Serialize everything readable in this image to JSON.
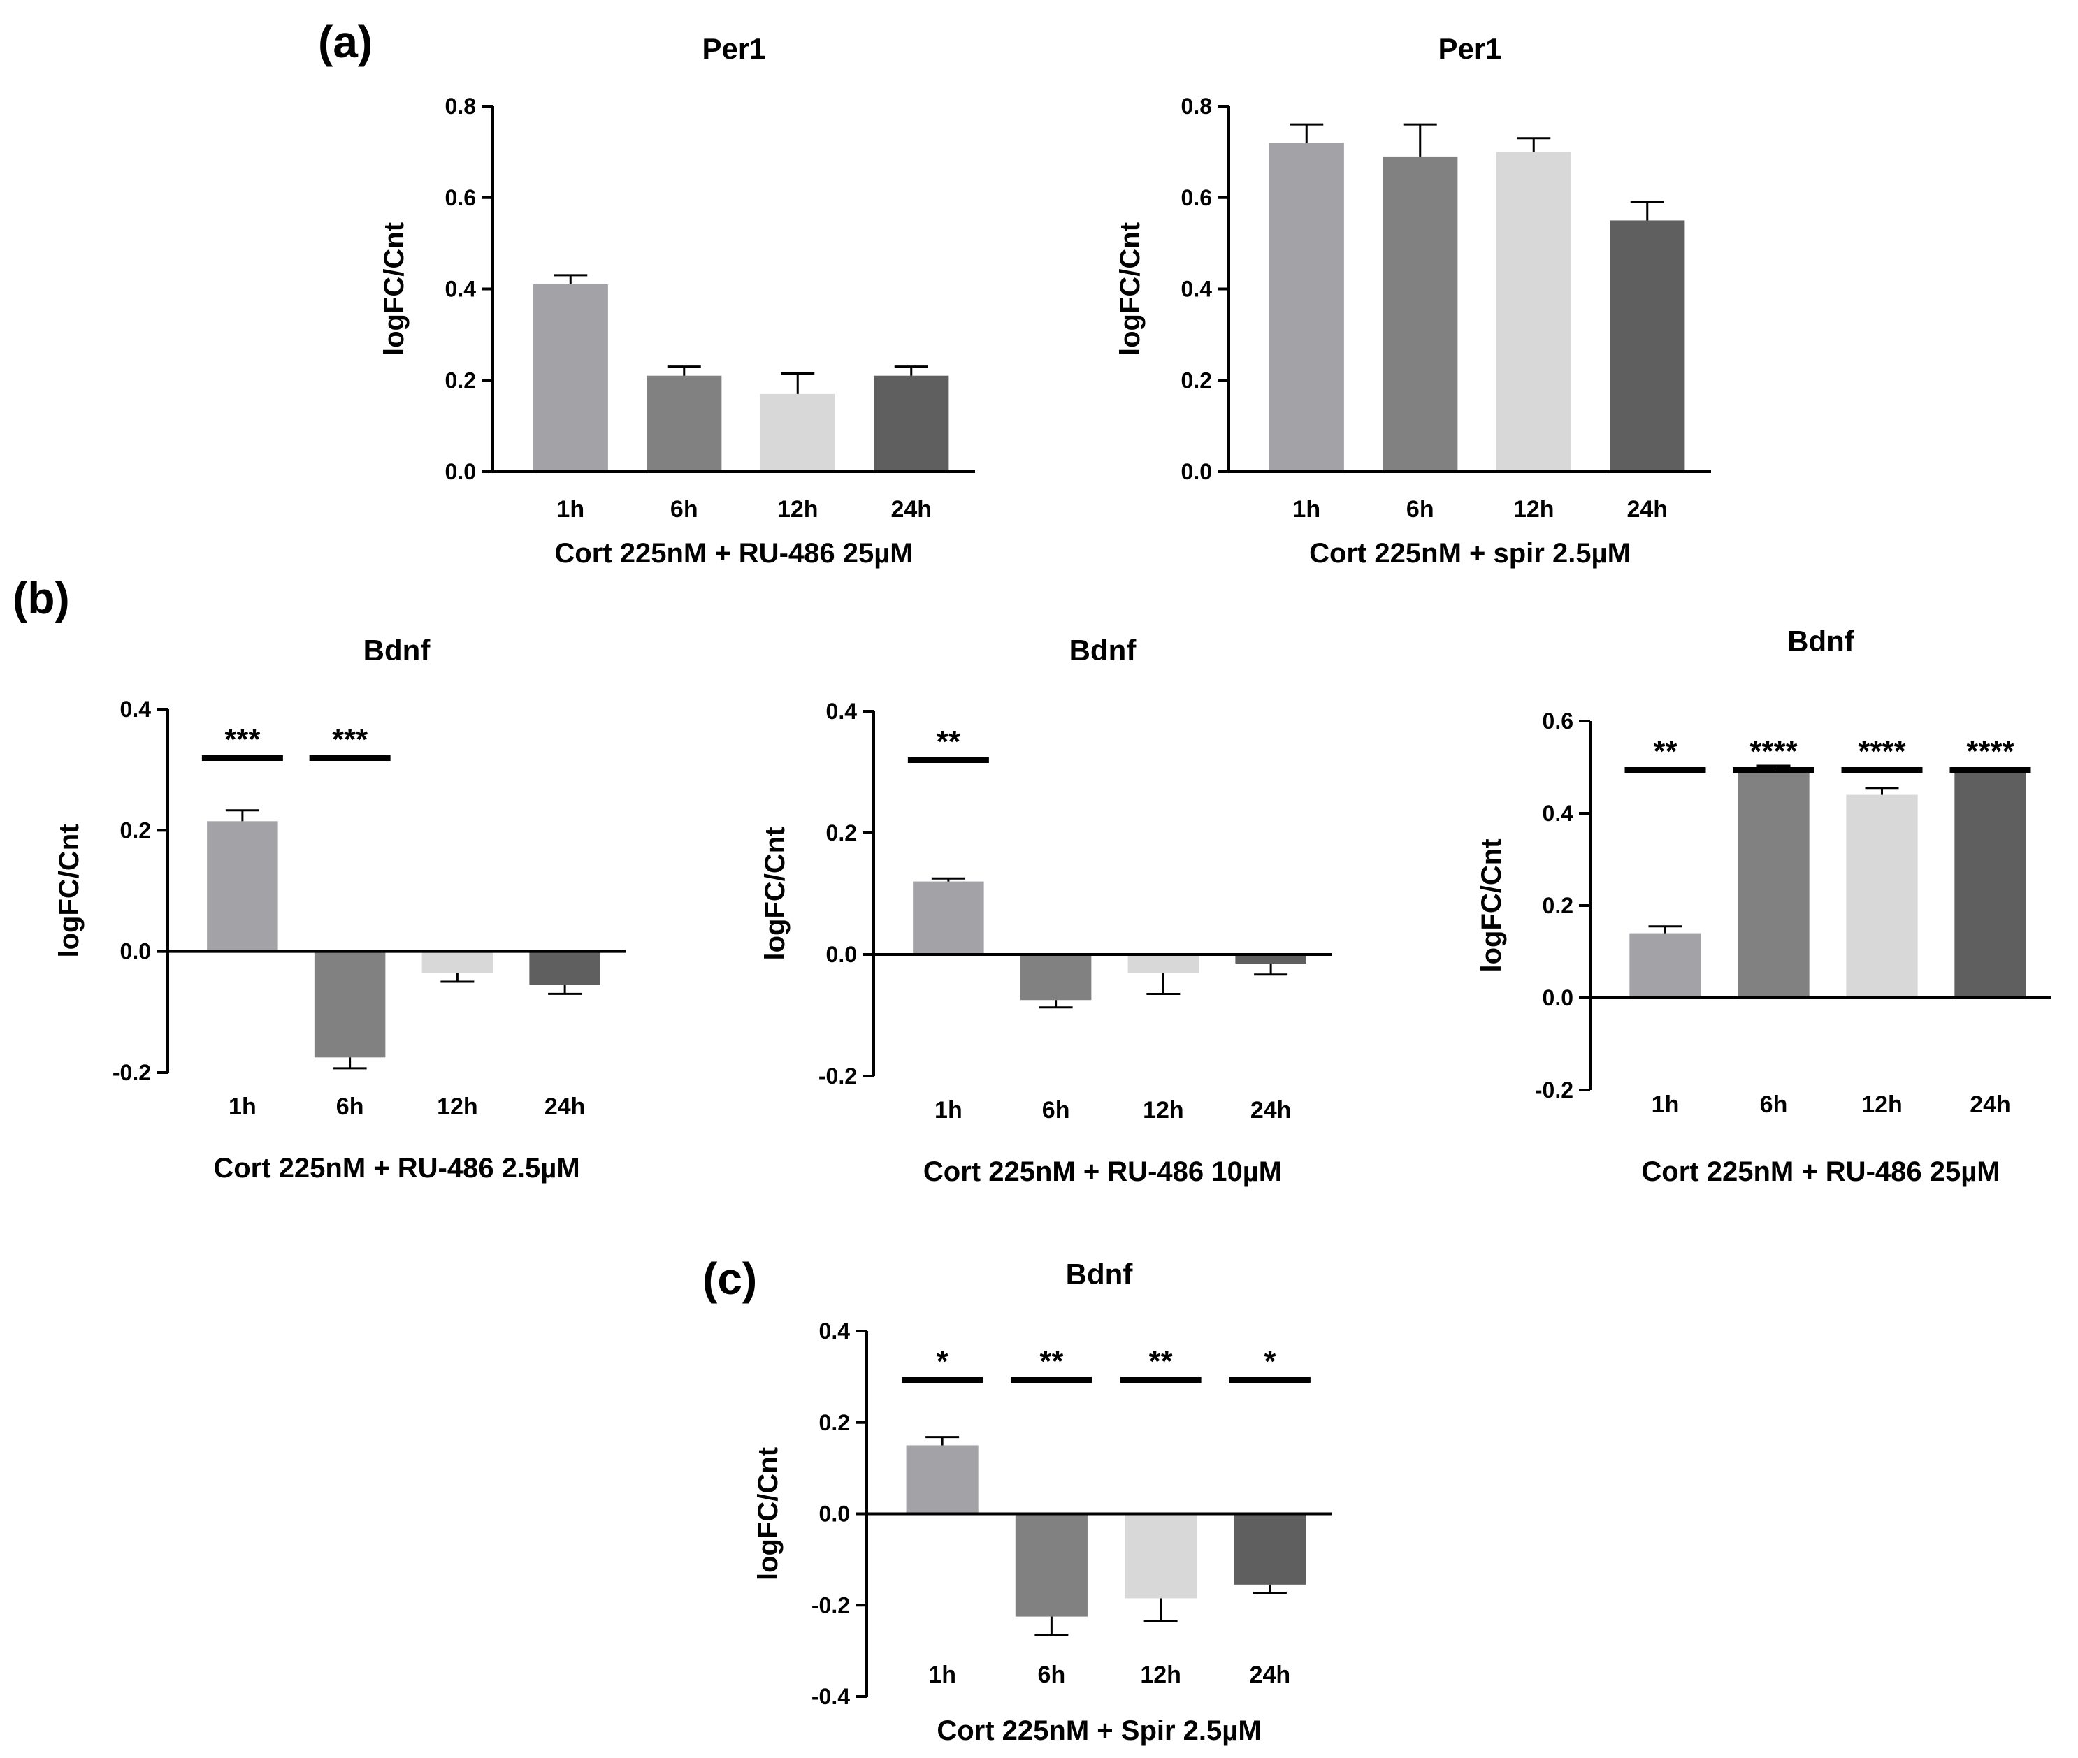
{
  "panel_labels": [
    "(a)",
    "(b)",
    "(c)"
  ],
  "bar_colors": [
    "#a3a2a7",
    "#818181",
    "#d8d8d8",
    "#5f5f5f"
  ],
  "chart_data": [
    {
      "id": "a1",
      "type": "bar",
      "panel": "(a)",
      "title": "Per1",
      "ylabel": "logFC/Cnt",
      "xlabel": "Cort 225nM + RU-486 25µM",
      "categories": [
        "1h",
        "6h",
        "12h",
        "24h"
      ],
      "values": [
        0.41,
        0.21,
        0.17,
        0.21
      ],
      "errors": [
        0.02,
        0.02,
        0.045,
        0.02
      ],
      "ylim": [
        0,
        0.8
      ],
      "yticks": [
        "0.0",
        "0.2",
        "0.4",
        "0.6",
        "0.8"
      ],
      "significance": [
        "",
        "",
        "",
        ""
      ]
    },
    {
      "id": "a2",
      "type": "bar",
      "panel": "(a)",
      "title": "Per1",
      "ylabel": "logFC/Cnt",
      "xlabel": "Cort 225nM + spir 2.5µM",
      "categories": [
        "1h",
        "6h",
        "12h",
        "24h"
      ],
      "values": [
        0.72,
        0.69,
        0.7,
        0.55
      ],
      "errors": [
        0.04,
        0.07,
        0.03,
        0.04
      ],
      "ylim": [
        0,
        0.8
      ],
      "yticks": [
        "0.0",
        "0.2",
        "0.4",
        "0.6",
        "0.8"
      ],
      "significance": [
        "",
        "",
        "",
        ""
      ]
    },
    {
      "id": "b1",
      "type": "bar",
      "panel": "(b)",
      "title": "Bdnf",
      "ylabel": "logFC/Cnt",
      "xlabel": "Cort 225nM + RU-486 2.5µM",
      "categories": [
        "1h",
        "6h",
        "12h",
        "24h"
      ],
      "values": [
        0.215,
        -0.175,
        -0.035,
        -0.055
      ],
      "errors": [
        0.018,
        0.018,
        0.015,
        0.015
      ],
      "ylim": [
        -0.2,
        0.4
      ],
      "yticks": [
        "-0.2",
        "0.0",
        "0.2",
        "0.4"
      ],
      "significance": [
        "***",
        "***",
        "",
        ""
      ]
    },
    {
      "id": "b2",
      "type": "bar",
      "panel": "(b)",
      "title": "Bdnf",
      "ylabel": "logFC/Cnt",
      "xlabel": "Cort 225nM + RU-486 10µM",
      "categories": [
        "1h",
        "6h",
        "12h",
        "24h"
      ],
      "values": [
        0.12,
        -0.075,
        -0.03,
        -0.015
      ],
      "errors": [
        0.005,
        0.012,
        0.035,
        0.018
      ],
      "ylim": [
        -0.2,
        0.4
      ],
      "yticks": [
        "-0.2",
        "0.0",
        "0.2",
        "0.4"
      ],
      "significance": [
        "**",
        "",
        "",
        ""
      ]
    },
    {
      "id": "b3",
      "type": "bar",
      "panel": "(b)",
      "title": "Bdnf",
      "ylabel": "logFC/Cnt",
      "xlabel": "Cort 225nM + RU-486 25µM",
      "categories": [
        "1h",
        "6h",
        "12h",
        "24h"
      ],
      "values": [
        0.14,
        0.5,
        0.44,
        0.49
      ],
      "errors": [
        0.015,
        0.003,
        0.015,
        0.005
      ],
      "ylim": [
        -0.2,
        0.6
      ],
      "yticks": [
        "-0.2",
        "0.0",
        "0.2",
        "0.4",
        "0.6"
      ],
      "significance": [
        "**",
        "****",
        "****",
        "****"
      ]
    },
    {
      "id": "c1",
      "type": "bar",
      "panel": "(c)",
      "title": "Bdnf",
      "ylabel": "logFC/Cnt",
      "xlabel": "Cort 225nM + Spir 2.5µM",
      "categories": [
        "1h",
        "6h",
        "12h",
        "24h"
      ],
      "values": [
        0.15,
        -0.225,
        -0.185,
        -0.155
      ],
      "errors": [
        0.018,
        0.04,
        0.05,
        0.018
      ],
      "ylim": [
        -0.4,
        0.4
      ],
      "yticks": [
        "-0.4",
        "-0.2",
        "0.0",
        "0.2",
        "0.4"
      ],
      "significance": [
        "*",
        "**",
        "**",
        "*"
      ]
    }
  ]
}
